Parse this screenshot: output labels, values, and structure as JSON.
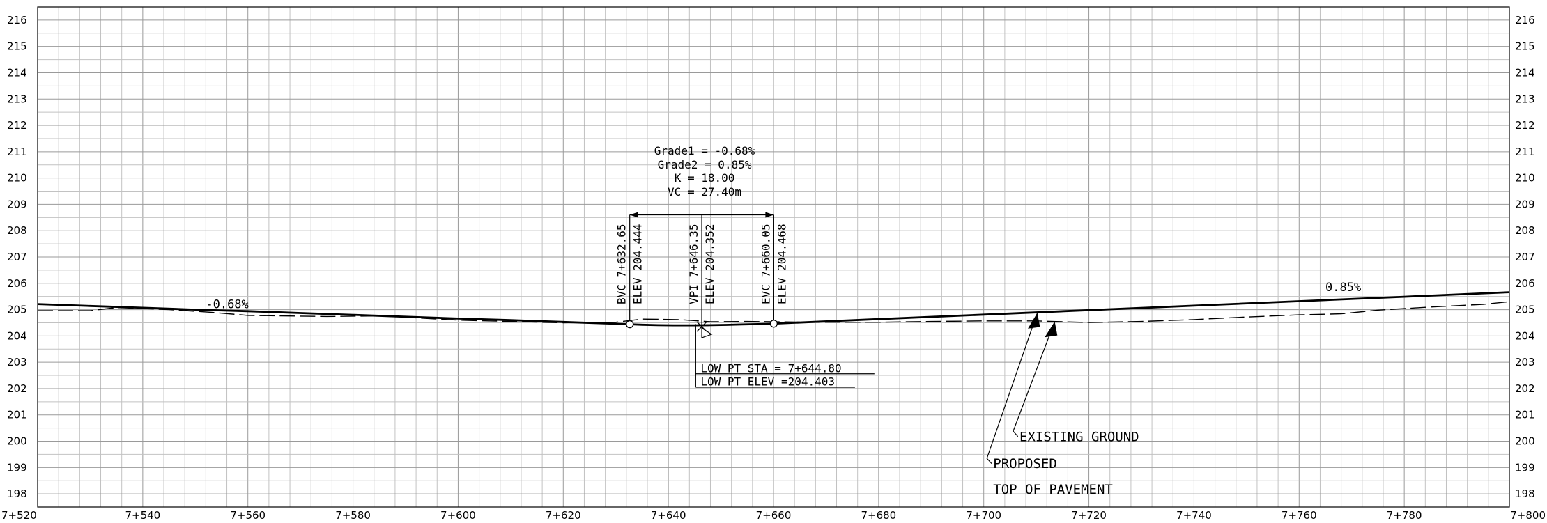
{
  "chart_data": {
    "type": "line",
    "title": "",
    "xlabel": "",
    "ylabel": "",
    "xlim": [
      7520,
      7800
    ],
    "ylim": [
      197.5,
      216.5
    ],
    "grid": true,
    "x_ticks": [
      "7+520",
      "7+540",
      "7+560",
      "7+580",
      "7+600",
      "7+620",
      "7+640",
      "7+660",
      "7+680",
      "7+700",
      "7+720",
      "7+740",
      "7+760",
      "7+780",
      "7+800"
    ],
    "y_ticks": [
      198,
      199,
      200,
      201,
      202,
      203,
      204,
      205,
      206,
      207,
      208,
      209,
      210,
      211,
      212,
      213,
      214,
      215,
      216
    ],
    "series": [
      {
        "name": "",
        "style": "solid",
        "points": [
          [
            7520,
            205.21
          ],
          [
            7530,
            205.14
          ],
          [
            7540,
            205.07
          ],
          [
            7550,
            205.0
          ],
          [
            7560,
            204.94
          ],
          [
            7570,
            204.87
          ],
          [
            7580,
            204.8
          ],
          [
            7590,
            204.73
          ],
          [
            7600,
            204.66
          ],
          [
            7610,
            204.6
          ],
          [
            7620,
            204.53
          ],
          [
            7632.65,
            204.444
          ],
          [
            7635,
            204.425
          ],
          [
            7638,
            204.41
          ],
          [
            7641,
            204.404
          ],
          [
            7644.8,
            204.403
          ],
          [
            7648,
            204.41
          ],
          [
            7651,
            204.42
          ],
          [
            7654,
            204.435
          ],
          [
            7657,
            204.45
          ],
          [
            7660.05,
            204.468
          ],
          [
            7680,
            204.64
          ],
          [
            7700,
            204.81
          ],
          [
            7720,
            204.98
          ],
          [
            7740,
            205.15
          ],
          [
            7760,
            205.32
          ],
          [
            7780,
            205.49
          ],
          [
            7800,
            205.66
          ]
        ]
      },
      {
        "name": "",
        "style": "dashed",
        "points": [
          [
            7520,
            204.96
          ],
          [
            7530,
            204.96
          ],
          [
            7535,
            205.08
          ],
          [
            7545,
            205.0
          ],
          [
            7553,
            204.9
          ],
          [
            7560,
            204.78
          ],
          [
            7575,
            204.74
          ],
          [
            7585,
            204.76
          ],
          [
            7600,
            204.6
          ],
          [
            7610,
            204.55
          ],
          [
            7620,
            204.5
          ],
          [
            7630,
            204.52
          ],
          [
            7635,
            204.64
          ],
          [
            7642,
            204.62
          ],
          [
            7648,
            204.54
          ],
          [
            7655,
            204.55
          ],
          [
            7660,
            204.54
          ],
          [
            7668,
            204.52
          ],
          [
            7680,
            204.52
          ],
          [
            7690,
            204.55
          ],
          [
            7700,
            204.57
          ],
          [
            7710,
            204.57
          ],
          [
            7720,
            204.51
          ],
          [
            7730,
            204.55
          ],
          [
            7740,
            204.62
          ],
          [
            7750,
            204.72
          ],
          [
            7760,
            204.8
          ],
          [
            7768,
            204.84
          ],
          [
            7775,
            204.98
          ],
          [
            7785,
            205.1
          ],
          [
            7795,
            205.2
          ],
          [
            7800,
            205.3
          ]
        ]
      }
    ],
    "points_of_interest": [
      {
        "name": "BVC",
        "x": 7632.65,
        "y": 204.444,
        "label1": "BVC 7+632.65",
        "label2": "ELEV 204.444"
      },
      {
        "name": "VPI",
        "x": 7646.35,
        "y": 204.352,
        "label1": "VPI 7+646.35",
        "label2": "ELEV 204.352"
      },
      {
        "name": "EVC",
        "x": 7660.05,
        "y": 204.468,
        "label1": "EVC 7+660.05",
        "label2": "ELEV 204.468"
      }
    ],
    "annotations": {
      "curve_data": [
        "Grade1 = -0.68%",
        "Grade2 = 0.85%",
        "K = 18.00",
        "VC = 27.40m"
      ],
      "grade_left": "-0.68%",
      "grade_right": "0.85%",
      "low_point_sta": "LOW PT STA = 7+644.80",
      "low_point_elev": "LOW PT ELEV =204.403",
      "existing_ground": "EXISTING GROUND",
      "proposed_line1": "PROPOSED",
      "proposed_line2": "TOP OF PAVEMENT"
    }
  }
}
